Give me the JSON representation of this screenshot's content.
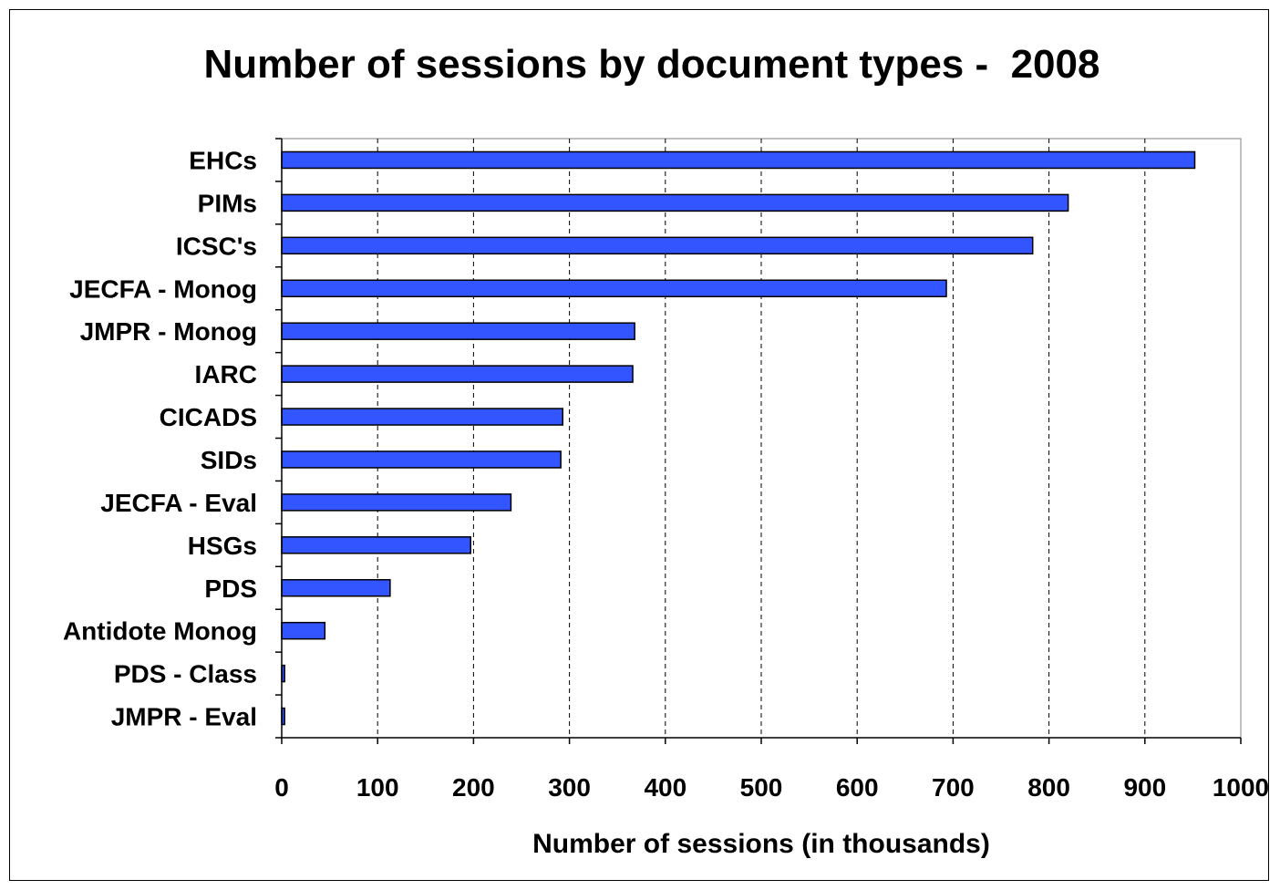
{
  "chart_data": {
    "type": "bar",
    "orientation": "horizontal",
    "title": "Number of sessions by document types -  2008",
    "xlabel": "Number of sessions (in thousands)",
    "ylabel": "",
    "categories": [
      "EHCs",
      "PIMs",
      "ICSC's",
      "JECFA - Monog",
      "JMPR - Monog",
      "IARC",
      "CICADS",
      "SIDs",
      "JECFA - Eval",
      "HSGs",
      "PDS",
      "Antidote Monog",
      "PDS - Class",
      "JMPR - Eval"
    ],
    "values": [
      952,
      820,
      783,
      693,
      368,
      366,
      293,
      291,
      239,
      197,
      113,
      45,
      3,
      3
    ],
    "xlim": [
      0,
      1000
    ],
    "xticks": [
      0,
      100,
      200,
      300,
      400,
      500,
      600,
      700,
      800,
      900,
      1000
    ],
    "grid": "vertical dashed",
    "legend": "none",
    "bar_color": "#3355ff"
  }
}
